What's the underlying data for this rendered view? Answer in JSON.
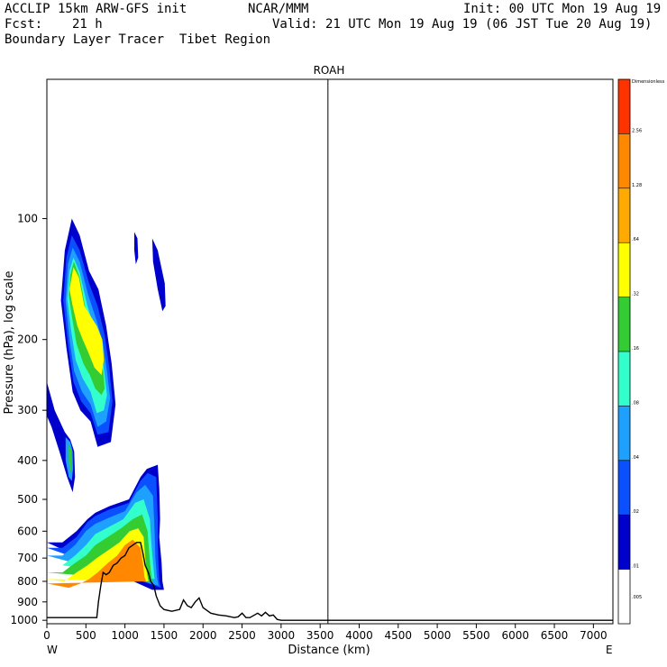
{
  "header": {
    "model": "ACCLIP 15km ARW-GFS init",
    "org": "NCAR/MMM",
    "init": "Init: 00 UTC Mon 19 Aug 19",
    "fcst_label": "Fcst:",
    "fcst_value": "21 h",
    "valid": "Valid: 21 UTC Mon 19 Aug 19 (06 JST Tue 20 Aug 19)",
    "field": "Boundary Layer Tracer  Tibet Region"
  },
  "chart_data": {
    "type": "heatmap",
    "title": "ROAH",
    "xlabel": "Distance (km)",
    "ylabel": "Pressure (hPa), log scale",
    "x_ticks": [
      "0",
      "500",
      "1000",
      "1500",
      "2000",
      "2500",
      "3000",
      "3500",
      "4000",
      "4500",
      "5000",
      "5500",
      "6000",
      "6500",
      "7000"
    ],
    "xlim": [
      0,
      7250
    ],
    "y_ticks": [
      "100",
      "200",
      "300",
      "400",
      "500",
      "600",
      "700",
      "800",
      "900",
      "1000"
    ],
    "ylim": [
      1020,
      45
    ],
    "x_end_labels": {
      "left": "W",
      "right": "E"
    },
    "marker_line_km": 3600,
    "colorbar": {
      "unit": "Dimensionless",
      "labels": [
        "2.56",
        "1.28",
        ".64",
        ".32",
        ".16",
        ".08",
        ".04",
        ".02",
        ".01",
        ".005"
      ],
      "colors": [
        "#ff3300",
        "#ff8800",
        "#ffaa00",
        "#ffff00",
        "#33cc33",
        "#33ffcc",
        "#1ea0ff",
        "#0a50ff",
        "#0000cc",
        "#ffffff"
      ]
    },
    "plumes": [
      {
        "name": "upper",
        "level": 0,
        "points": [
          [
            320,
            100
          ],
          [
            420,
            110
          ],
          [
            540,
            135
          ],
          [
            660,
            150
          ],
          [
            760,
            185
          ],
          [
            830,
            230
          ],
          [
            880,
            290
          ],
          [
            820,
            360
          ],
          [
            650,
            370
          ],
          [
            560,
            320
          ],
          [
            430,
            300
          ],
          [
            330,
            270
          ],
          [
            250,
            210
          ],
          [
            180,
            160
          ],
          [
            230,
            120
          ]
        ]
      },
      {
        "name": "upper",
        "level": 1,
        "points": [
          [
            320,
            110
          ],
          [
            420,
            120
          ],
          [
            540,
            145
          ],
          [
            650,
            165
          ],
          [
            740,
            195
          ],
          [
            800,
            235
          ],
          [
            840,
            285
          ],
          [
            790,
            340
          ],
          [
            650,
            345
          ],
          [
            560,
            305
          ],
          [
            440,
            285
          ],
          [
            340,
            255
          ],
          [
            270,
            205
          ],
          [
            210,
            160
          ],
          [
            250,
            125
          ]
        ]
      },
      {
        "name": "upper",
        "level": 2,
        "points": [
          [
            330,
            118
          ],
          [
            420,
            128
          ],
          [
            530,
            155
          ],
          [
            640,
            180
          ],
          [
            720,
            205
          ],
          [
            770,
            240
          ],
          [
            810,
            280
          ],
          [
            760,
            320
          ],
          [
            650,
            330
          ],
          [
            560,
            290
          ],
          [
            450,
            270
          ],
          [
            350,
            240
          ],
          [
            290,
            200
          ],
          [
            240,
            160
          ],
          [
            270,
            130
          ]
        ]
      },
      {
        "name": "upper",
        "level": 3,
        "points": [
          [
            340,
            125
          ],
          [
            420,
            136
          ],
          [
            520,
            165
          ],
          [
            620,
            190
          ],
          [
            700,
            215
          ],
          [
            740,
            245
          ],
          [
            770,
            275
          ],
          [
            730,
            300
          ],
          [
            640,
            305
          ],
          [
            560,
            270
          ],
          [
            460,
            250
          ],
          [
            370,
            225
          ],
          [
            310,
            190
          ],
          [
            260,
            158
          ],
          [
            290,
            135
          ]
        ]
      },
      {
        "name": "upper",
        "level": 4,
        "points": [
          [
            345,
            128
          ],
          [
            420,
            140
          ],
          [
            500,
            170
          ],
          [
            590,
            190
          ],
          [
            680,
            215
          ],
          [
            720,
            240
          ],
          [
            740,
            265
          ],
          [
            700,
            275
          ],
          [
            620,
            265
          ],
          [
            550,
            245
          ],
          [
            470,
            230
          ],
          [
            380,
            205
          ],
          [
            320,
            175
          ],
          [
            280,
            155
          ],
          [
            300,
            138
          ]
        ]
      },
      {
        "name": "upper",
        "level": 5,
        "points": [
          [
            340,
            132
          ],
          [
            410,
            140
          ],
          [
            480,
            165
          ],
          [
            560,
            175
          ],
          [
            640,
            185
          ],
          [
            710,
            200
          ],
          [
            730,
            225
          ],
          [
            700,
            245
          ],
          [
            610,
            235
          ],
          [
            530,
            215
          ],
          [
            460,
            200
          ],
          [
            390,
            185
          ],
          [
            330,
            165
          ],
          [
            290,
            150
          ]
        ]
      },
      {
        "name": "column",
        "level": 0,
        "points": [
          [
            0,
            255
          ],
          [
            100,
            300
          ],
          [
            230,
            340
          ],
          [
            300,
            355
          ],
          [
            350,
            380
          ],
          [
            360,
            440
          ],
          [
            330,
            480
          ],
          [
            260,
            440
          ],
          [
            160,
            380
          ],
          [
            60,
            330
          ],
          [
            0,
            310
          ]
        ]
      },
      {
        "name": "column",
        "level": 2,
        "points": [
          [
            240,
            350
          ],
          [
            300,
            360
          ],
          [
            330,
            380
          ],
          [
            335,
            420
          ],
          [
            320,
            450
          ],
          [
            280,
            440
          ],
          [
            240,
            400
          ]
        ]
      },
      {
        "name": "column",
        "level": 4,
        "points": [
          [
            280,
            365
          ],
          [
            310,
            375
          ],
          [
            320,
            400
          ],
          [
            315,
            425
          ],
          [
            295,
            425
          ],
          [
            280,
            400
          ]
        ]
      },
      {
        "name": "streak-a",
        "level": 0,
        "points": [
          [
            1120,
            108
          ],
          [
            1160,
            112
          ],
          [
            1170,
            125
          ],
          [
            1140,
            130
          ],
          [
            1120,
            120
          ]
        ]
      },
      {
        "name": "streak-b",
        "level": 0,
        "points": [
          [
            1350,
            112
          ],
          [
            1420,
            120
          ],
          [
            1510,
            145
          ],
          [
            1520,
            165
          ],
          [
            1480,
            170
          ],
          [
            1420,
            150
          ],
          [
            1360,
            128
          ]
        ]
      },
      {
        "name": "lower",
        "level": 0,
        "points": [
          [
            0,
            640
          ],
          [
            200,
            640
          ],
          [
            380,
            600
          ],
          [
            520,
            560
          ],
          [
            620,
            540
          ],
          [
            800,
            520
          ],
          [
            1050,
            500
          ],
          [
            1200,
            440
          ],
          [
            1280,
            420
          ],
          [
            1420,
            410
          ],
          [
            1440,
            470
          ],
          [
            1450,
            560
          ],
          [
            1440,
            620
          ],
          [
            1470,
            720
          ],
          [
            1480,
            800
          ],
          [
            1500,
            840
          ],
          [
            1420,
            840
          ],
          [
            1350,
            840
          ]
        ]
      },
      {
        "name": "lower",
        "level": 1,
        "points": [
          [
            0,
            660
          ],
          [
            200,
            660
          ],
          [
            380,
            620
          ],
          [
            520,
            570
          ],
          [
            620,
            550
          ],
          [
            800,
            530
          ],
          [
            1050,
            510
          ],
          [
            1200,
            450
          ],
          [
            1290,
            430
          ],
          [
            1400,
            440
          ],
          [
            1420,
            560
          ],
          [
            1420,
            650
          ],
          [
            1430,
            730
          ],
          [
            1440,
            800
          ],
          [
            1460,
            830
          ]
        ]
      },
      {
        "name": "lower",
        "level": 2,
        "points": [
          [
            0,
            690
          ],
          [
            200,
            690
          ],
          [
            360,
            650
          ],
          [
            500,
            600
          ],
          [
            620,
            575
          ],
          [
            800,
            555
          ],
          [
            1000,
            535
          ],
          [
            1150,
            480
          ],
          [
            1260,
            460
          ],
          [
            1360,
            490
          ],
          [
            1380,
            600
          ],
          [
            1390,
            700
          ],
          [
            1410,
            780
          ],
          [
            1430,
            820
          ]
        ]
      },
      {
        "name": "lower",
        "level": 3,
        "points": [
          [
            0,
            720
          ],
          [
            200,
            730
          ],
          [
            360,
            690
          ],
          [
            500,
            650
          ],
          [
            620,
            610
          ],
          [
            800,
            585
          ],
          [
            980,
            560
          ],
          [
            1130,
            510
          ],
          [
            1240,
            500
          ],
          [
            1320,
            560
          ],
          [
            1340,
            650
          ],
          [
            1360,
            720
          ],
          [
            1380,
            790
          ]
        ]
      },
      {
        "name": "lower",
        "level": 4,
        "points": [
          [
            0,
            760
          ],
          [
            200,
            760
          ],
          [
            360,
            720
          ],
          [
            500,
            690
          ],
          [
            620,
            650
          ],
          [
            780,
            620
          ],
          [
            950,
            590
          ],
          [
            1100,
            560
          ],
          [
            1220,
            545
          ],
          [
            1290,
            600
          ],
          [
            1310,
            680
          ],
          [
            1330,
            750
          ],
          [
            1350,
            800
          ]
        ]
      },
      {
        "name": "lower",
        "level": 5,
        "points": [
          [
            0,
            790
          ],
          [
            220,
            800
          ],
          [
            380,
            760
          ],
          [
            520,
            730
          ],
          [
            640,
            700
          ],
          [
            780,
            670
          ],
          [
            930,
            640
          ],
          [
            1060,
            600
          ],
          [
            1170,
            590
          ],
          [
            1240,
            620
          ],
          [
            1260,
            700
          ],
          [
            1280,
            760
          ],
          [
            1300,
            800
          ]
        ]
      },
      {
        "name": "lower",
        "level": 6,
        "points": [
          [
            0,
            810
          ],
          [
            280,
            830
          ],
          [
            430,
            810
          ],
          [
            540,
            790
          ],
          [
            650,
            760
          ],
          [
            780,
            720
          ],
          [
            900,
            690
          ],
          [
            1000,
            650
          ],
          [
            1100,
            630
          ],
          [
            1200,
            660
          ],
          [
            1230,
            720
          ],
          [
            1250,
            780
          ],
          [
            1270,
            800
          ]
        ]
      }
    ],
    "terrain": [
      [
        0,
        985
      ],
      [
        640,
        985
      ],
      [
        660,
        900
      ],
      [
        690,
        820
      ],
      [
        720,
        760
      ],
      [
        760,
        770
      ],
      [
        800,
        760
      ],
      [
        850,
        730
      ],
      [
        900,
        720
      ],
      [
        950,
        700
      ],
      [
        1000,
        690
      ],
      [
        1050,
        660
      ],
      [
        1100,
        650
      ],
      [
        1150,
        640
      ],
      [
        1200,
        640
      ],
      [
        1230,
        680
      ],
      [
        1260,
        730
      ],
      [
        1300,
        760
      ],
      [
        1330,
        800
      ],
      [
        1370,
        820
      ],
      [
        1400,
        870
      ],
      [
        1450,
        920
      ],
      [
        1500,
        940
      ],
      [
        1600,
        950
      ],
      [
        1700,
        940
      ],
      [
        1750,
        890
      ],
      [
        1800,
        920
      ],
      [
        1850,
        930
      ],
      [
        1900,
        900
      ],
      [
        1950,
        880
      ],
      [
        2000,
        930
      ],
      [
        2100,
        960
      ],
      [
        2200,
        970
      ],
      [
        2300,
        975
      ],
      [
        2400,
        985
      ],
      [
        2450,
        980
      ],
      [
        2500,
        960
      ],
      [
        2550,
        985
      ],
      [
        2600,
        985
      ],
      [
        2700,
        960
      ],
      [
        2750,
        975
      ],
      [
        2800,
        955
      ],
      [
        2850,
        975
      ],
      [
        2900,
        970
      ],
      [
        2950,
        995
      ],
      [
        3000,
        1000
      ],
      [
        3500,
        1000
      ],
      [
        4000,
        1000
      ],
      [
        7250,
        1000
      ]
    ]
  }
}
